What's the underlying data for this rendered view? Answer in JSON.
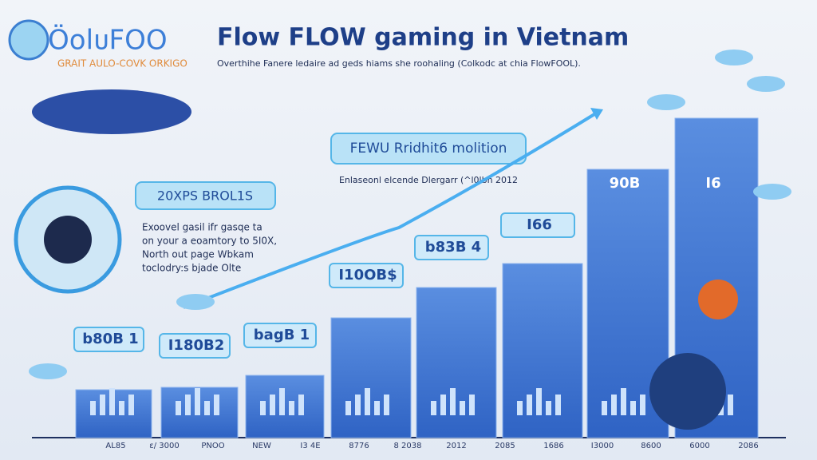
{
  "header": {
    "logo": "ÖolᴜFOO",
    "tagline": "GRAIT AULO-COVK ORKIGO",
    "title": "Flow FLOW gaming in Vietnam",
    "subtitle": "Overthihe Fanere ledaire ad geds hiams she roohaling (Colkodc at chia FlowFOOL)."
  },
  "callout": {
    "title": "FEWU Rridhit6 molition",
    "caption": "Enlaseonl elcende Dlergarr (^l0lbh 2012"
  },
  "info_box": {
    "title": "20XPS BROL1S",
    "lines": [
      "Exoovel gasil ifr gasqe ta",
      "on your a eoamtory to 5I0X,",
      "North out page Wbkam",
      "toclodry:s bjade Olte"
    ]
  },
  "bars": [
    {
      "label": "b80B 1"
    },
    {
      "label": "I180B2"
    },
    {
      "label": "bagB 1"
    },
    {
      "label": "I10OB$"
    },
    {
      "label": "b83B 4"
    },
    {
      "label": "I66"
    },
    {
      "label": "90B"
    },
    {
      "label": "I6"
    }
  ],
  "axis_labels": [
    "AL85",
    "ɛ/ 3000",
    "PNOO",
    "NEW",
    "I3 4E",
    "8776",
    "8 2038",
    "2012",
    "2085",
    "1686",
    "I3000",
    "8600",
    "6000",
    "2086"
  ]
}
